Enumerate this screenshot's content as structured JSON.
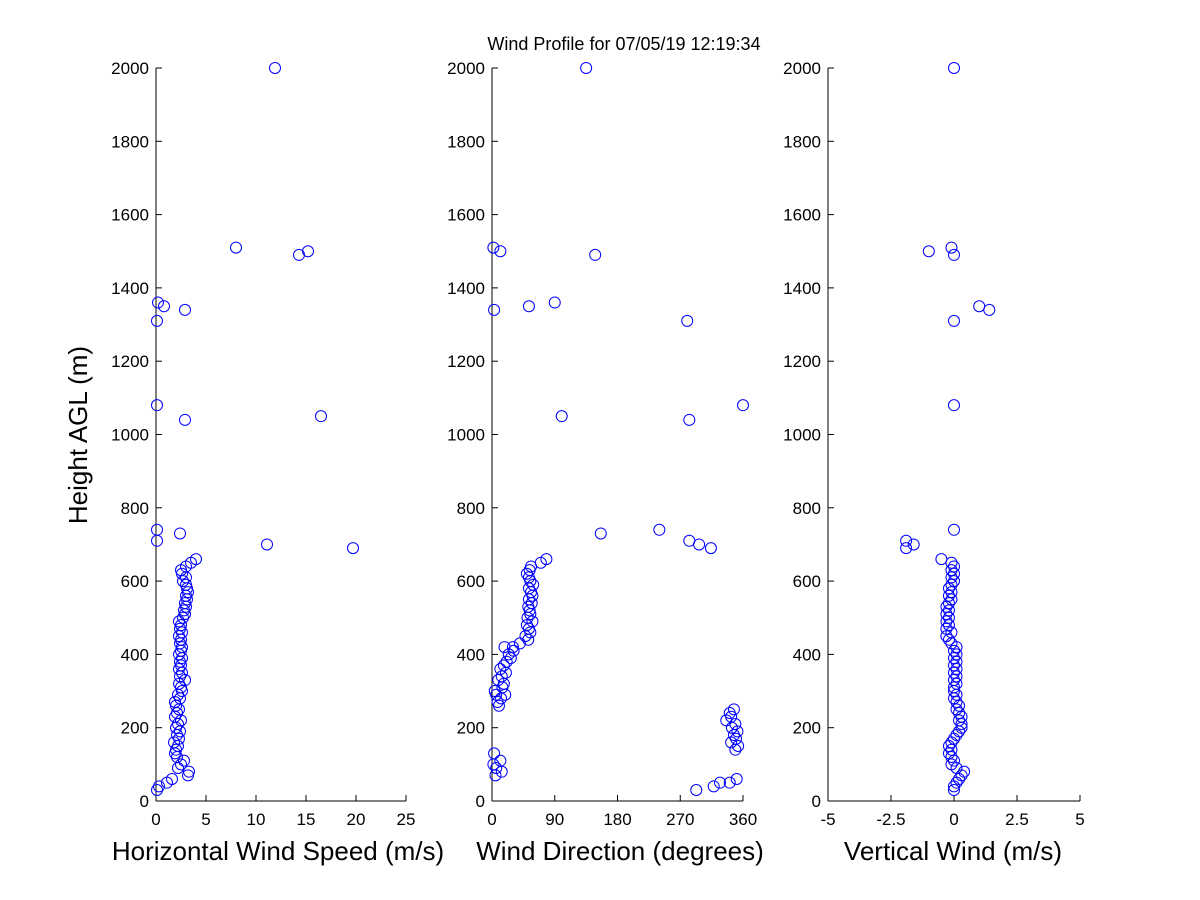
{
  "title": "Wind Profile for  07/05/19 12:19:34",
  "chart_data": [
    {
      "type": "scatter",
      "xlabel": "Horizontal Wind Speed (m/s)",
      "ylabel": "Height AGL (m)",
      "xlim": [
        0,
        25
      ],
      "ylim": [
        0,
        2000
      ],
      "xticks": [
        "0",
        "5",
        "10",
        "15",
        "20",
        "25"
      ],
      "yticks": [
        "0",
        "200",
        "400",
        "600",
        "800",
        "1000",
        "1200",
        "1400",
        "1600",
        "1800",
        "2000"
      ],
      "marker": "open circle",
      "color": "#0000ff",
      "points": [
        [
          0.1,
          30
        ],
        [
          0.3,
          40
        ],
        [
          1.1,
          50
        ],
        [
          1.6,
          60
        ],
        [
          3.2,
          70
        ],
        [
          3.3,
          80
        ],
        [
          2.2,
          90
        ],
        [
          2.5,
          100
        ],
        [
          2.8,
          110
        ],
        [
          2.1,
          120
        ],
        [
          1.9,
          130
        ],
        [
          2.0,
          140
        ],
        [
          2.2,
          150
        ],
        [
          1.8,
          160
        ],
        [
          2.3,
          170
        ],
        [
          2.1,
          180
        ],
        [
          2.4,
          190
        ],
        [
          2.0,
          200
        ],
        [
          2.2,
          210
        ],
        [
          2.5,
          220
        ],
        [
          1.9,
          230
        ],
        [
          2.1,
          240
        ],
        [
          2.3,
          250
        ],
        [
          2.0,
          260
        ],
        [
          1.9,
          270
        ],
        [
          2.4,
          280
        ],
        [
          2.2,
          290
        ],
        [
          2.6,
          300
        ],
        [
          2.5,
          310
        ],
        [
          2.3,
          320
        ],
        [
          2.9,
          330
        ],
        [
          2.4,
          340
        ],
        [
          2.6,
          350
        ],
        [
          2.3,
          360
        ],
        [
          2.5,
          370
        ],
        [
          2.4,
          380
        ],
        [
          2.6,
          390
        ],
        [
          2.3,
          400
        ],
        [
          2.5,
          410
        ],
        [
          2.6,
          420
        ],
        [
          2.4,
          430
        ],
        [
          2.5,
          440
        ],
        [
          2.3,
          450
        ],
        [
          2.6,
          460
        ],
        [
          2.4,
          470
        ],
        [
          2.5,
          480
        ],
        [
          2.3,
          490
        ],
        [
          2.7,
          500
        ],
        [
          2.9,
          510
        ],
        [
          2.8,
          520
        ],
        [
          3.0,
          530
        ],
        [
          2.9,
          540
        ],
        [
          3.1,
          550
        ],
        [
          3.0,
          560
        ],
        [
          3.2,
          570
        ],
        [
          3.1,
          580
        ],
        [
          3.0,
          590
        ],
        [
          2.7,
          600
        ],
        [
          3.0,
          610
        ],
        [
          2.6,
          620
        ],
        [
          2.5,
          630
        ],
        [
          3.0,
          640
        ],
        [
          3.5,
          650
        ],
        [
          4.0,
          660
        ],
        [
          19.7,
          690
        ],
        [
          11.1,
          700
        ],
        [
          0.1,
          710
        ],
        [
          2.4,
          730
        ],
        [
          0.1,
          740
        ],
        [
          2.9,
          1040
        ],
        [
          16.5,
          1050
        ],
        [
          0.1,
          1080
        ],
        [
          0.1,
          1310
        ],
        [
          2.9,
          1340
        ],
        [
          0.8,
          1350
        ],
        [
          0.2,
          1360
        ],
        [
          14.3,
          1490
        ],
        [
          15.2,
          1500
        ],
        [
          8.0,
          1510
        ],
        [
          11.9,
          2000
        ]
      ]
    },
    {
      "type": "scatter",
      "xlabel": "Wind Direction (degrees)",
      "ylabel": "",
      "xlim": [
        0,
        360
      ],
      "ylim": [
        0,
        2000
      ],
      "xticks": [
        "0",
        "90",
        "180",
        "270",
        "360"
      ],
      "yticks": [
        "0",
        "200",
        "400",
        "600",
        "800",
        "1000",
        "1200",
        "1400",
        "1600",
        "1800",
        "2000"
      ],
      "marker": "open circle",
      "color": "#0000ff",
      "points": [
        [
          293,
          30
        ],
        [
          318,
          40
        ],
        [
          341,
          50
        ],
        [
          327,
          50
        ],
        [
          351,
          60
        ],
        [
          5,
          70
        ],
        [
          14,
          80
        ],
        [
          6,
          90
        ],
        [
          2,
          100
        ],
        [
          12,
          110
        ],
        [
          3,
          130
        ],
        [
          349,
          140
        ],
        [
          353,
          150
        ],
        [
          343,
          160
        ],
        [
          350,
          170
        ],
        [
          347,
          180
        ],
        [
          352,
          190
        ],
        [
          344,
          200
        ],
        [
          349,
          210
        ],
        [
          336,
          220
        ],
        [
          343,
          230
        ],
        [
          341,
          240
        ],
        [
          347,
          250
        ],
        [
          10,
          260
        ],
        [
          8,
          270
        ],
        [
          13,
          280
        ],
        [
          6,
          290
        ],
        [
          19,
          290
        ],
        [
          4,
          300
        ],
        [
          15,
          310
        ],
        [
          17,
          320
        ],
        [
          9,
          330
        ],
        [
          14,
          340
        ],
        [
          20,
          350
        ],
        [
          12,
          360
        ],
        [
          17,
          370
        ],
        [
          21,
          380
        ],
        [
          27,
          390
        ],
        [
          24,
          400
        ],
        [
          31,
          410
        ],
        [
          18,
          420
        ],
        [
          30,
          420
        ],
        [
          40,
          430
        ],
        [
          52,
          440
        ],
        [
          48,
          450
        ],
        [
          55,
          460
        ],
        [
          53,
          470
        ],
        [
          50,
          480
        ],
        [
          58,
          490
        ],
        [
          51,
          500
        ],
        [
          55,
          510
        ],
        [
          54,
          520
        ],
        [
          52,
          530
        ],
        [
          57,
          540
        ],
        [
          53,
          550
        ],
        [
          58,
          560
        ],
        [
          56,
          570
        ],
        [
          53,
          580
        ],
        [
          59,
          590
        ],
        [
          55,
          600
        ],
        [
          53,
          610
        ],
        [
          50,
          620
        ],
        [
          54,
          630
        ],
        [
          56,
          640
        ],
        [
          70,
          650
        ],
        [
          78,
          660
        ],
        [
          314,
          690
        ],
        [
          297,
          700
        ],
        [
          283,
          710
        ],
        [
          156,
          730
        ],
        [
          240,
          740
        ],
        [
          283,
          1040
        ],
        [
          100,
          1050
        ],
        [
          360,
          1080
        ],
        [
          280,
          1310
        ],
        [
          3,
          1340
        ],
        [
          53,
          1350
        ],
        [
          90,
          1360
        ],
        [
          148,
          1490
        ],
        [
          12,
          1500
        ],
        [
          2,
          1510
        ],
        [
          135,
          2000
        ]
      ]
    },
    {
      "type": "scatter",
      "xlabel": "Vertical Wind (m/s)",
      "ylabel": "",
      "xlim": [
        -5,
        5
      ],
      "ylim": [
        0,
        2000
      ],
      "xticks": [
        "-5",
        "-2.5",
        "0",
        "2.5",
        "5"
      ],
      "yticks": [
        "0",
        "200",
        "400",
        "600",
        "800",
        "1000",
        "1200",
        "1400",
        "1600",
        "1800",
        "2000"
      ],
      "marker": "open circle",
      "color": "#0000ff",
      "points": [
        [
          0.0,
          30
        ],
        [
          0.0,
          40
        ],
        [
          0.1,
          50
        ],
        [
          0.2,
          60
        ],
        [
          0.3,
          70
        ],
        [
          0.4,
          80
        ],
        [
          0.1,
          90
        ],
        [
          -0.1,
          100
        ],
        [
          0.0,
          110
        ],
        [
          -0.1,
          120
        ],
        [
          -0.2,
          130
        ],
        [
          -0.1,
          140
        ],
        [
          -0.2,
          150
        ],
        [
          -0.1,
          160
        ],
        [
          0.0,
          170
        ],
        [
          0.1,
          180
        ],
        [
          0.2,
          190
        ],
        [
          0.3,
          200
        ],
        [
          0.3,
          210
        ],
        [
          0.2,
          220
        ],
        [
          0.3,
          230
        ],
        [
          0.2,
          240
        ],
        [
          0.1,
          250
        ],
        [
          0.2,
          260
        ],
        [
          0.1,
          270
        ],
        [
          0.0,
          280
        ],
        [
          0.1,
          290
        ],
        [
          0.0,
          300
        ],
        [
          0.0,
          310
        ],
        [
          0.1,
          320
        ],
        [
          0.0,
          330
        ],
        [
          0.1,
          340
        ],
        [
          0.0,
          350
        ],
        [
          0.1,
          360
        ],
        [
          0.0,
          370
        ],
        [
          0.1,
          380
        ],
        [
          0.0,
          390
        ],
        [
          0.1,
          400
        ],
        [
          0.0,
          410
        ],
        [
          0.1,
          420
        ],
        [
          -0.1,
          430
        ],
        [
          -0.2,
          440
        ],
        [
          -0.3,
          450
        ],
        [
          -0.1,
          460
        ],
        [
          -0.3,
          470
        ],
        [
          -0.2,
          480
        ],
        [
          -0.3,
          490
        ],
        [
          -0.2,
          500
        ],
        [
          -0.3,
          510
        ],
        [
          -0.2,
          520
        ],
        [
          -0.3,
          530
        ],
        [
          -0.2,
          540
        ],
        [
          -0.1,
          550
        ],
        [
          -0.2,
          560
        ],
        [
          -0.1,
          570
        ],
        [
          -0.2,
          580
        ],
        [
          -0.1,
          590
        ],
        [
          0.0,
          600
        ],
        [
          -0.1,
          610
        ],
        [
          0.0,
          620
        ],
        [
          -0.1,
          630
        ],
        [
          0.0,
          640
        ],
        [
          -0.1,
          650
        ],
        [
          -0.5,
          660
        ],
        [
          -1.9,
          690
        ],
        [
          -1.6,
          700
        ],
        [
          -1.9,
          710
        ],
        [
          0.0,
          740
        ],
        [
          0.0,
          1080
        ],
        [
          1.4,
          1340
        ],
        [
          1.0,
          1350
        ],
        [
          0.0,
          1310
        ],
        [
          -1.0,
          1500
        ],
        [
          0.0,
          1490
        ],
        [
          -0.1,
          1510
        ],
        [
          0.0,
          2000
        ]
      ]
    }
  ]
}
